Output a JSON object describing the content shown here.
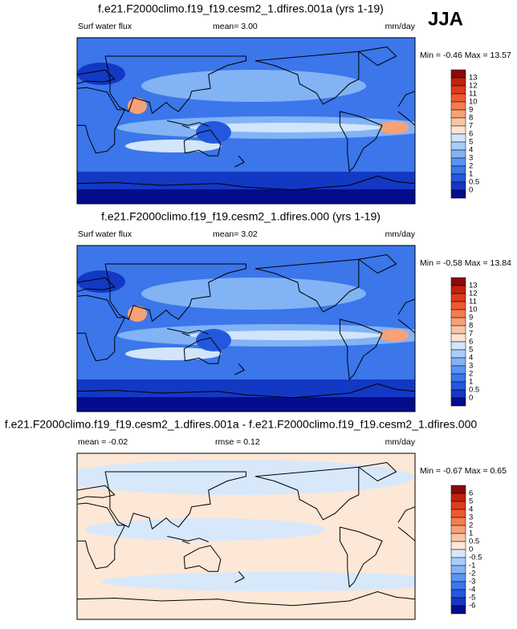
{
  "season": "JJA",
  "panels": [
    {
      "title": "f.e21.F2000climo.f19_f19.cesm2_1.dfires.001a (yrs 1-19)",
      "variable": "Surf water flux",
      "stat": "mean=  3.00",
      "units": "mm/day",
      "min_max": "Min =  -0.46 Max =  13.57",
      "colorbar": {
        "labels": [
          "13",
          "12",
          "11",
          "10",
          "9",
          "8",
          "7",
          "6",
          "5",
          "4",
          "3",
          "2",
          "1",
          "0.5",
          "0"
        ],
        "colors": [
          "#8b0a05",
          "#c0220f",
          "#df3b1a",
          "#ee5a2d",
          "#f47d4e",
          "#f6a176",
          "#f9c6a4",
          "#fbe4d2",
          "#d2e5fa",
          "#a9cdf8",
          "#82b3f5",
          "#5a94f1",
          "#3b76ea",
          "#2358de",
          "#1338c4",
          "#050c8c"
        ]
      }
    },
    {
      "title": "f.e21.F2000climo.f19_f19.cesm2_1.dfires.000 (yrs 1-19)",
      "variable": "Surf water flux",
      "stat": "mean=  3.02",
      "units": "mm/day",
      "min_max": "Min =  -0.58 Max =  13.84",
      "colorbar": {
        "labels": [
          "13",
          "12",
          "11",
          "10",
          "9",
          "8",
          "7",
          "6",
          "5",
          "4",
          "3",
          "2",
          "1",
          "0.5",
          "0"
        ],
        "colors": [
          "#8b0a05",
          "#c0220f",
          "#df3b1a",
          "#ee5a2d",
          "#f47d4e",
          "#f6a176",
          "#f9c6a4",
          "#fbe4d2",
          "#d2e5fa",
          "#a9cdf8",
          "#82b3f5",
          "#5a94f1",
          "#3b76ea",
          "#2358de",
          "#1338c4",
          "#050c8c"
        ]
      }
    },
    {
      "title": "f.e21.F2000climo.f19_f19.cesm2_1.dfires.001a - f.e21.F2000climo.f19_f19.cesm2_1.dfires.000",
      "variable": "mean = -0.02",
      "stat": "rmse =  0.12",
      "units": "mm/day",
      "min_max": "Min =  -0.67 Max =  0.65",
      "colorbar": {
        "labels": [
          "6",
          "5",
          "4",
          "3",
          "2",
          "1",
          "0.5",
          "0",
          "-0.5",
          "-1",
          "-2",
          "-3",
          "-4",
          "-5",
          "-6"
        ],
        "colors": [
          "#8b0a05",
          "#c0220f",
          "#df3b1a",
          "#ee5a2d",
          "#f47d4e",
          "#f6a176",
          "#f9c6a4",
          "#fde7d6",
          "#d7e8fb",
          "#a9cdf8",
          "#82b3f5",
          "#5a94f1",
          "#3b76ea",
          "#2358de",
          "#1338c4",
          "#050c8c"
        ]
      }
    }
  ]
}
